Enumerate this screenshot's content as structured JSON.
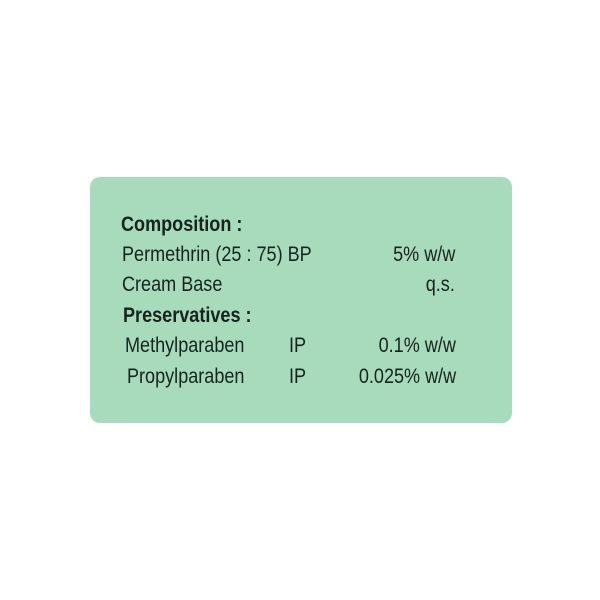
{
  "label": {
    "background_color": "#a7dbbc",
    "text_color": "#17241d",
    "composition_heading": "Composition :",
    "rows": [
      {
        "name": "Permethrin (25 : 75) BP",
        "grade": "",
        "amount": "5% w/w"
      },
      {
        "name": "Cream Base",
        "grade": "",
        "amount": "q.s."
      }
    ],
    "preservatives_heading": "Preservatives :",
    "preservatives": [
      {
        "name": "Methylparaben",
        "grade": "IP",
        "amount": "0.1% w/w"
      },
      {
        "name": "Propylparaben",
        "grade": "IP",
        "amount": "0.025% w/w"
      }
    ]
  }
}
